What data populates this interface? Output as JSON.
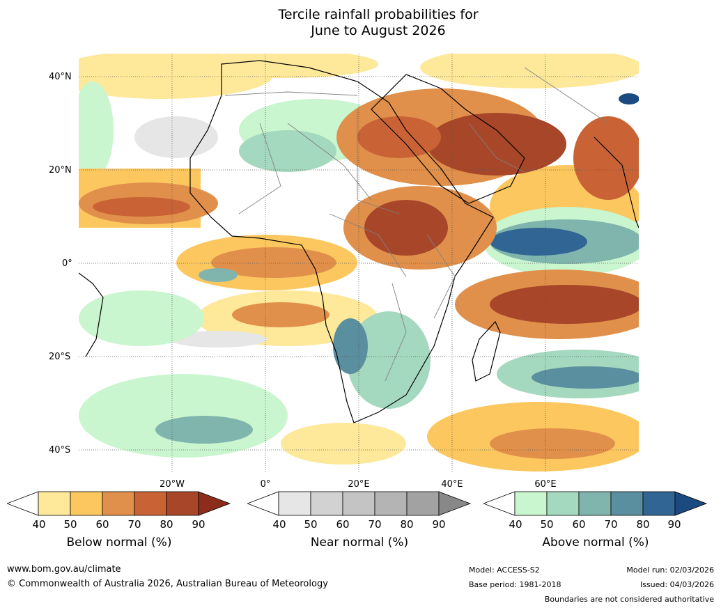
{
  "title": {
    "line1": "Tercile rainfall probabilities for",
    "line2": "June to August 2026"
  },
  "axes": {
    "lat_labels": [
      "40°N",
      "20°N",
      "0°",
      "20°S",
      "40°S"
    ],
    "lon_labels": [
      "20°W",
      "0°",
      "20°E",
      "40°E",
      "60°E"
    ]
  },
  "colorbars": [
    {
      "title": "Below normal (%)",
      "ticks": [
        "40",
        "50",
        "60",
        "70",
        "80",
        "90"
      ],
      "colors": [
        "#ffffff",
        "#fee89a",
        "#fdc75f",
        "#e0904a",
        "#c96235",
        "#a8462a",
        "#8c2d1c"
      ]
    },
    {
      "title": "Near normal (%)",
      "ticks": [
        "40",
        "50",
        "60",
        "70",
        "80",
        "90"
      ],
      "colors": [
        "#ffffff",
        "#e6e6e6",
        "#d2d2d2",
        "#c4c4c4",
        "#b4b4b4",
        "#a2a2a2",
        "#888888"
      ]
    },
    {
      "title": "Above normal (%)",
      "ticks": [
        "40",
        "50",
        "60",
        "70",
        "80",
        "90"
      ],
      "colors": [
        "#ffffff",
        "#c9f5cf",
        "#a4d8bf",
        "#80b5ad",
        "#5a8f9f",
        "#316593",
        "#1a4a80"
      ]
    }
  ],
  "footer": {
    "website": "www.bom.gov.au/climate",
    "copyright": "© Commonwealth of Australia 2026, Australian Bureau of Meteorology",
    "model": "Model: ACCESS-S2",
    "base_period": "Base period: 1981-2018",
    "model_run": "Model run: 02/03/2026",
    "issued": "Issued: 04/03/2026",
    "disclaimer": "Boundaries are not considered authoritative"
  },
  "colors": {
    "below_weak": "#fee89a",
    "below_mid": "#e0904a",
    "below_strong": "#a8462a",
    "near": "#e2e2e2",
    "above_weak": "#c9f5cf",
    "above_mid": "#80b5ad",
    "above_strong": "#316593",
    "land_outline": "#000000",
    "border_line": "#808080"
  }
}
